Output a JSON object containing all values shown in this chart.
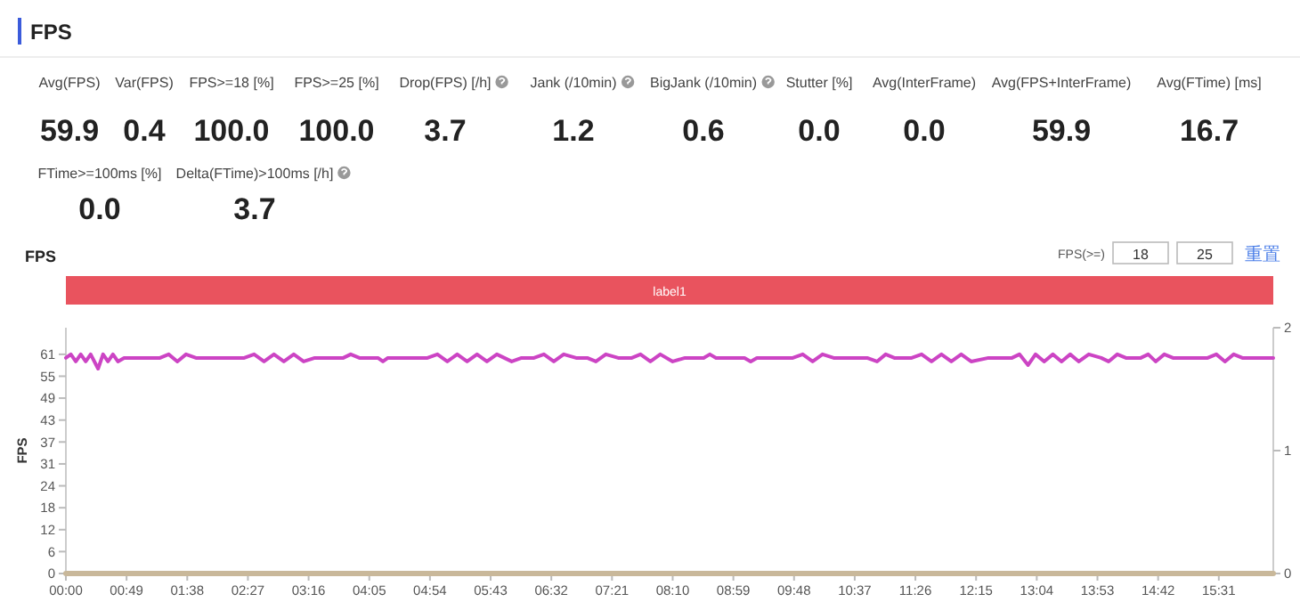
{
  "chart_data": [
    {
      "type": "other",
      "title": "FPS",
      "annotations": [
        "Avg(FPS)",
        "59.9",
        "Var(FPS)",
        "0.4",
        "FPS>=18 [%]",
        "100.0",
        "FPS>=25 [%]",
        "100.0",
        "Drop(FPS) [/h]",
        "3.7",
        "Jank (/10min)",
        "1.2",
        "BigJank (/10min)",
        "0.6",
        "Stutter [%]",
        "0.0",
        "Avg(InterFrame)",
        "0.0",
        "Avg(FPS+InterFrame)",
        "59.9",
        "Avg(FTime) [ms]",
        "16.7",
        "FTime>=100ms [%]",
        "0.0",
        "Delta(FTime)>100ms [/h]",
        "3.7"
      ]
    },
    {
      "type": "line",
      "title": "FPS",
      "ylabel": "FPS",
      "x": [
        0,
        4,
        8,
        12,
        16,
        20,
        26,
        30,
        34,
        38,
        42,
        47,
        76,
        83,
        90,
        97,
        105,
        144,
        152,
        160,
        168,
        176,
        184,
        192,
        201,
        224,
        230,
        237,
        252,
        256,
        260,
        292,
        300,
        308,
        316,
        324,
        332,
        340,
        348,
        354,
        360,
        368,
        378,
        386,
        394,
        402,
        412,
        421,
        428,
        436,
        446,
        457,
        464,
        472,
        480,
        490,
        500,
        515,
        520,
        525,
        548,
        553,
        558,
        587,
        595,
        603,
        611,
        620,
        647,
        655,
        662,
        669,
        683,
        691,
        699,
        707,
        715,
        723,
        731,
        745,
        764,
        770,
        777,
        783,
        790,
        797,
        804,
        811,
        818,
        826,
        836,
        842,
        849,
        856,
        868,
        874,
        880,
        887,
        894,
        922,
        929,
        936,
        943,
        950,
        975
      ],
      "series": [
        {
          "color": "#cc44c4",
          "values": [
            60,
            61,
            59,
            61,
            59,
            61,
            57,
            61,
            59,
            61,
            59,
            60,
            60,
            61,
            59,
            61,
            60,
            60,
            61,
            59,
            61,
            59,
            61,
            59,
            60,
            60,
            61,
            60,
            60,
            59,
            60,
            60,
            61,
            59,
            61,
            59,
            61,
            59,
            61,
            60,
            59,
            60,
            60,
            61,
            59,
            61,
            60,
            60,
            59,
            61,
            60,
            60,
            61,
            59,
            61,
            59,
            60,
            60,
            61,
            60,
            60,
            59,
            60,
            60,
            61,
            59,
            61,
            60,
            60,
            59,
            61,
            60,
            60,
            61,
            59,
            61,
            59,
            61,
            59,
            60,
            60,
            61,
            58,
            61,
            59,
            61,
            59,
            61,
            59,
            61,
            60,
            59,
            61,
            60,
            60,
            61,
            59,
            61,
            60,
            60,
            61,
            59,
            61,
            60,
            60
          ]
        },
        {
          "color": "#c9b89a",
          "axis": "y2",
          "x": [
            0,
            975
          ],
          "values": [
            0,
            0
          ]
        }
      ],
      "xlim": [
        0,
        975
      ],
      "xticks": [
        {
          "value": 0,
          "label": "00:00"
        },
        {
          "value": 49,
          "label": "00:49"
        },
        {
          "value": 98,
          "label": "01:38"
        },
        {
          "value": 147,
          "label": "02:27"
        },
        {
          "value": 196,
          "label": "03:16"
        },
        {
          "value": 245,
          "label": "04:05"
        },
        {
          "value": 294,
          "label": "04:54"
        },
        {
          "value": 343,
          "label": "05:43"
        },
        {
          "value": 392,
          "label": "06:32"
        },
        {
          "value": 441,
          "label": "07:21"
        },
        {
          "value": 490,
          "label": "08:10"
        },
        {
          "value": 539,
          "label": "08:59"
        },
        {
          "value": 588,
          "label": "09:48"
        },
        {
          "value": 637,
          "label": "10:37"
        },
        {
          "value": 686,
          "label": "11:26"
        },
        {
          "value": 735,
          "label": "12:15"
        },
        {
          "value": 784,
          "label": "13:04"
        },
        {
          "value": 833,
          "label": "13:53"
        },
        {
          "value": 882,
          "label": "14:42"
        },
        {
          "value": 931,
          "label": "15:31"
        }
      ],
      "ylim": [
        0,
        68.4
      ],
      "yticks": [
        0,
        {
          "value": 6.1,
          "label": "6"
        },
        {
          "value": 12.2,
          "label": "12"
        },
        {
          "value": 18.3,
          "label": "18"
        },
        {
          "value": 24.4,
          "label": "24"
        },
        {
          "value": 30.5,
          "label": "31"
        },
        {
          "value": 36.6,
          "label": "37"
        },
        {
          "value": 42.7,
          "label": "43"
        },
        {
          "value": 48.8,
          "label": "49"
        },
        {
          "value": 54.9,
          "label": "55"
        },
        61
      ],
      "y2lim": [
        0,
        2
      ],
      "y2ticks": [
        0,
        1,
        2
      ],
      "annotations": [
        "label1",
        "FPS(>=)",
        "18",
        "25",
        "重置"
      ]
    }
  ]
}
